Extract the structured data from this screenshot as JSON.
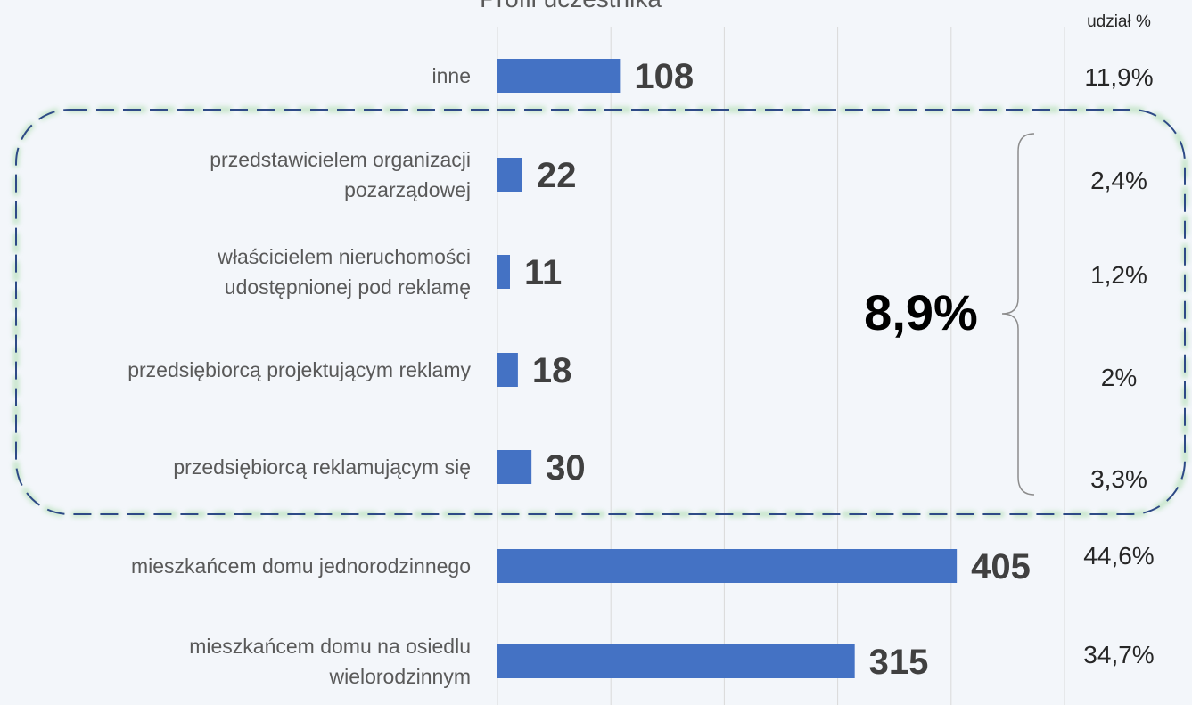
{
  "chart_data": {
    "type": "bar",
    "orientation": "horizontal",
    "title": "Profil uczestnika",
    "categories": [
      "inne",
      "przedstawicielem organizacji\npozarządowej",
      "właścicielem nieruchomości\nudostępnionej pod reklamę",
      "przedsiębiorcą projektującym reklamy",
      "przedsiębiorcą reklamującym się",
      "mieszkańcem domu jednorodzinnego",
      "mieszkańcem domu na osiedlu\nwielorodzinnym"
    ],
    "values": [
      108,
      22,
      11,
      18,
      30,
      405,
      315
    ],
    "color": "#4472c4",
    "xlim": [
      0,
      500
    ],
    "xticks": [
      0,
      100,
      200,
      300,
      400,
      500
    ],
    "grid": true,
    "shares": {
      "name": "udział %",
      "values": [
        11.9,
        2.4,
        1.2,
        2,
        3.3,
        44.6,
        34.7
      ],
      "value_labels": [
        "11,9%",
        "2,4%",
        "1,2%",
        "2%",
        "3,3%",
        "44,6%",
        "34,7%"
      ]
    },
    "annotation": "8,9%"
  }
}
